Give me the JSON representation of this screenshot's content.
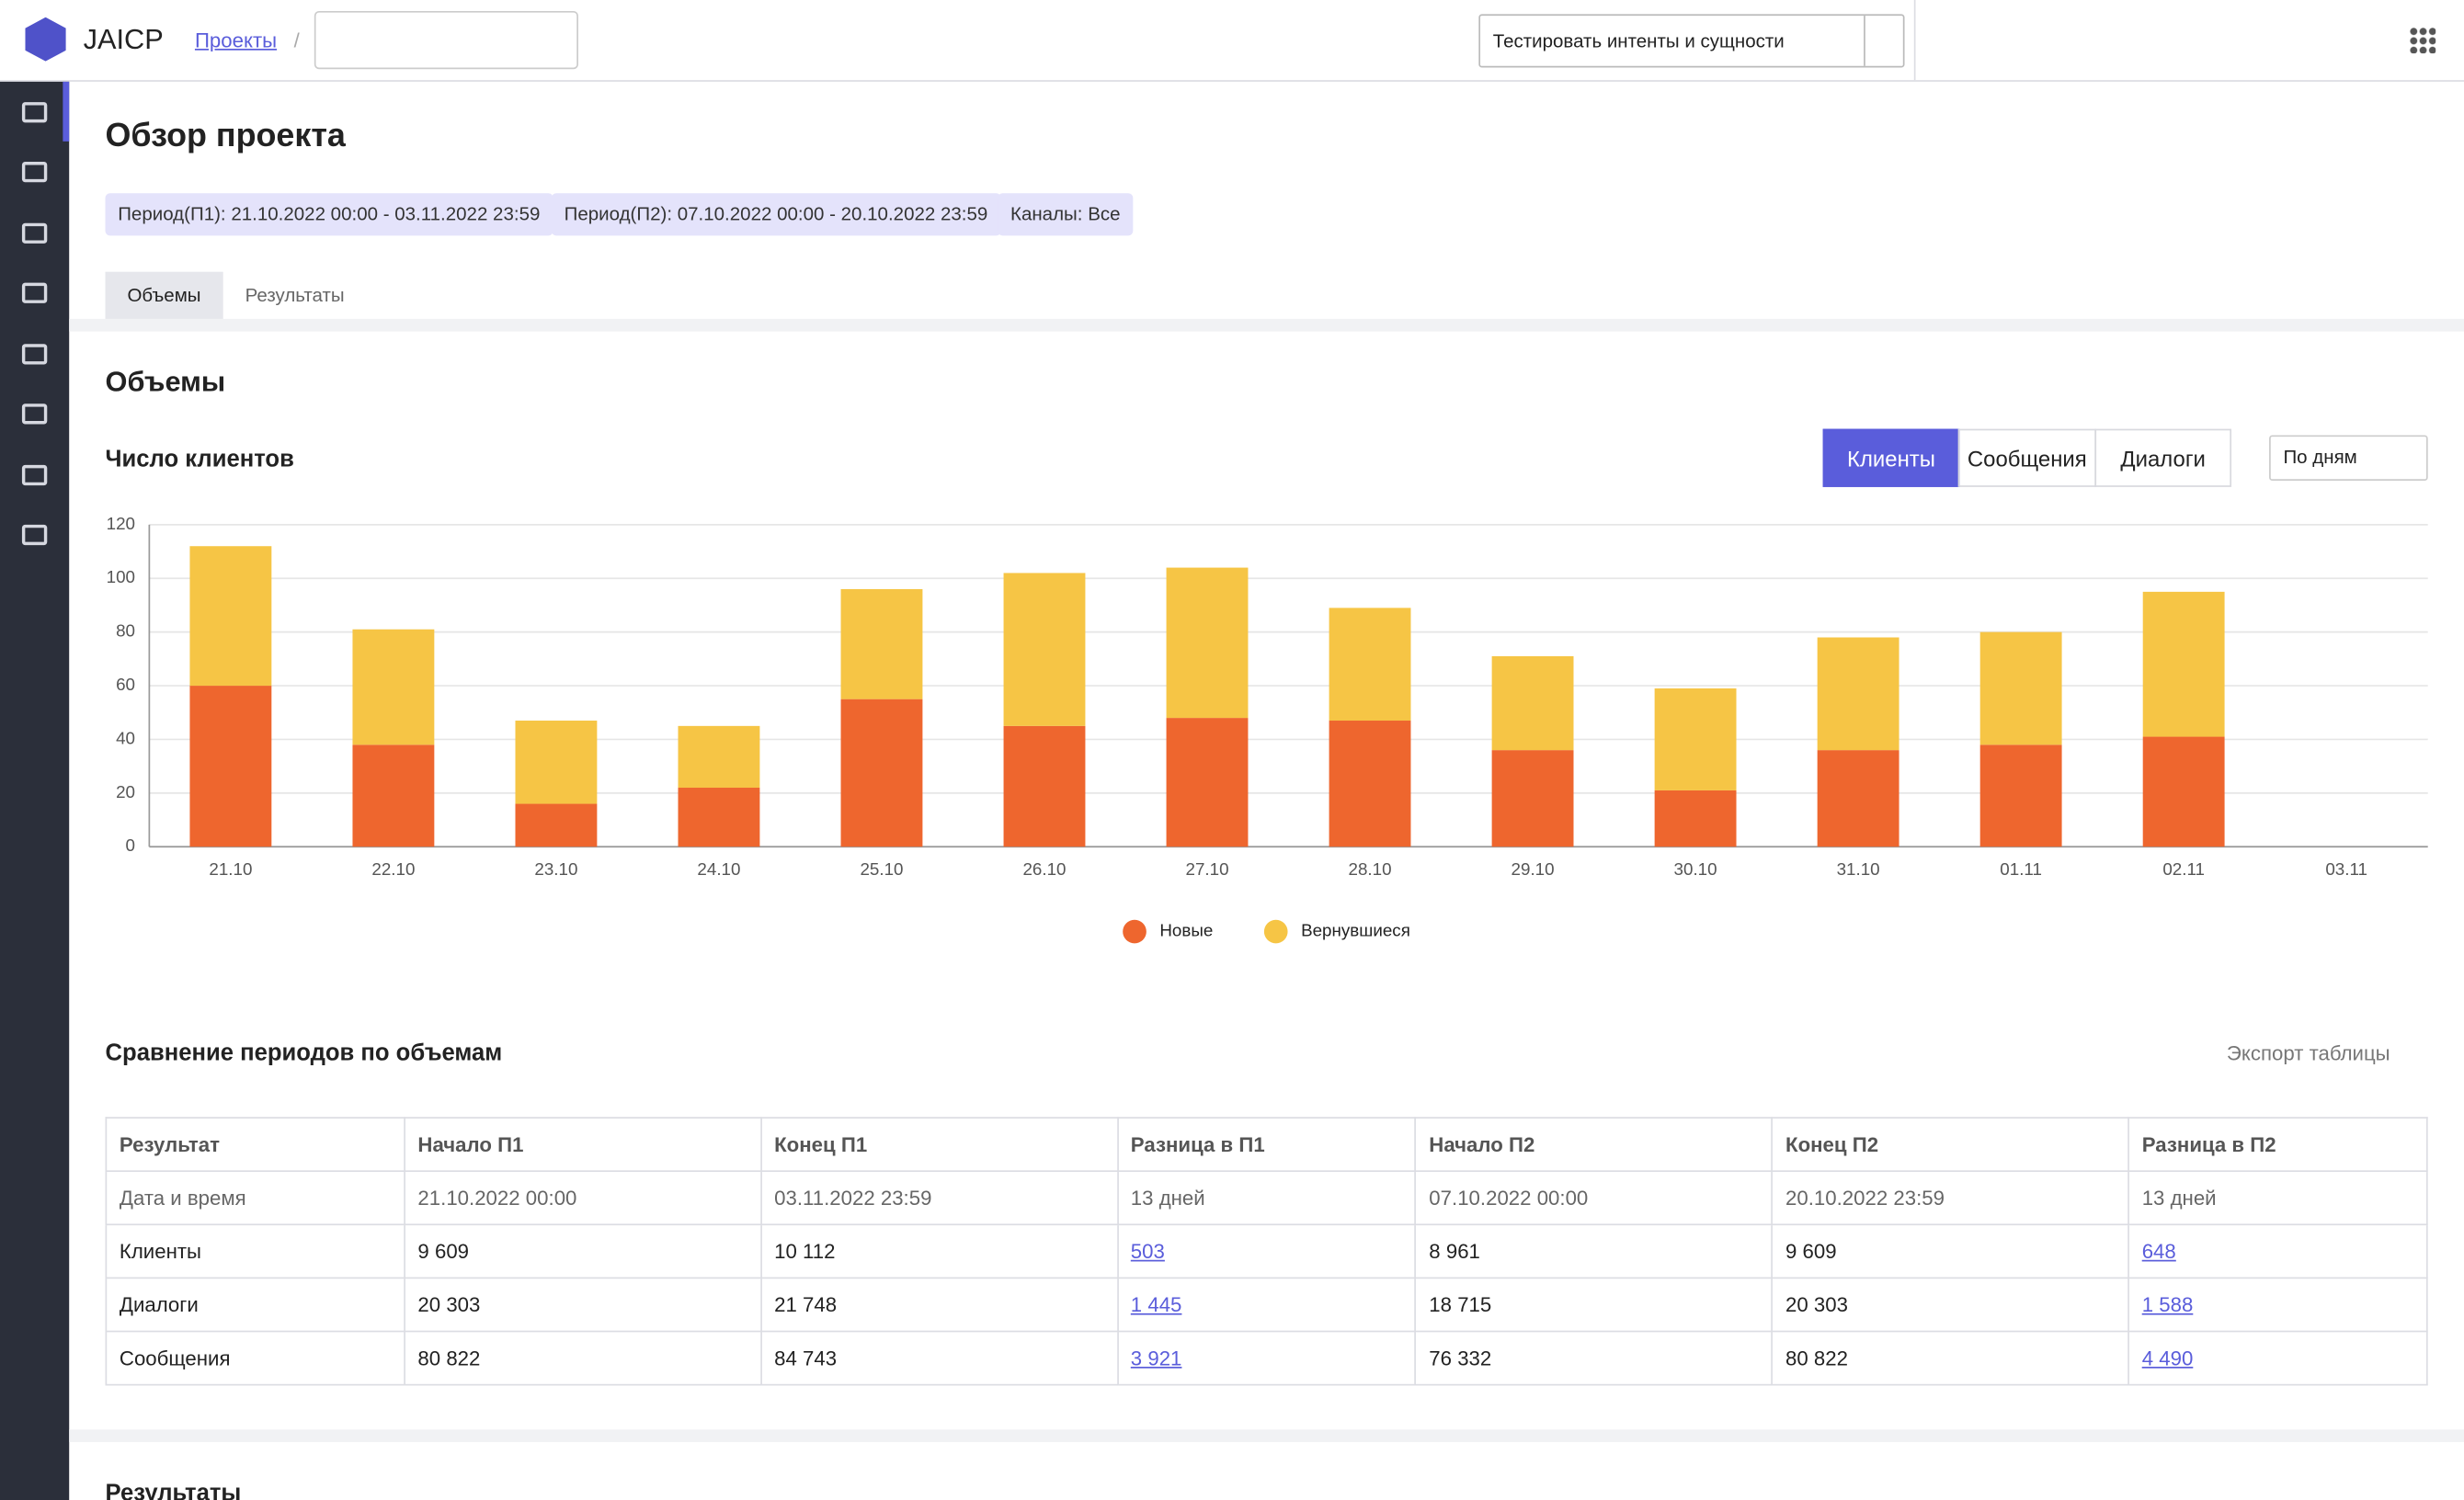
{
  "header": {
    "logo": "JAICP",
    "breadcrumb": "Проекты",
    "separator": "/",
    "test_button": "Тестировать интенты и сущности"
  },
  "page": {
    "title": "Обзор проекта",
    "filters": [
      "Период(П1): 21.10.2022 00:00 - 03.11.2022 23:59",
      "Период(П2): 07.10.2022 00:00 - 20.10.2022 23:59",
      "Каналы: Все"
    ],
    "tabs": [
      "Объемы",
      "Результаты"
    ],
    "section_title": "Объемы",
    "chart_title": "Число клиентов",
    "toggle": [
      "Клиенты",
      "Сообщения",
      "Диалоги"
    ],
    "period_select": "По дням",
    "next_section": "Результаты"
  },
  "chart_data": {
    "type": "stacked-bar",
    "categories": [
      "21.10",
      "22.10",
      "23.10",
      "24.10",
      "25.10",
      "26.10",
      "27.10",
      "28.10",
      "29.10",
      "30.10",
      "31.10",
      "01.11",
      "02.11",
      "03.11"
    ],
    "series": [
      {
        "name": "Новые",
        "color": "#ee662e",
        "values": [
          60,
          38,
          16,
          22,
          55,
          45,
          48,
          47,
          36,
          21,
          36,
          38,
          41,
          null
        ]
      },
      {
        "name": "Вернувшиеся",
        "color": "#f6c545",
        "values": [
          52,
          43,
          31,
          23,
          41,
          57,
          56,
          42,
          35,
          38,
          42,
          42,
          54,
          null
        ]
      }
    ],
    "ylim": [
      0,
      120
    ],
    "yticks": [
      0,
      20,
      40,
      60,
      80,
      100,
      120
    ],
    "grid": true,
    "legend": "bottom"
  },
  "table": {
    "title": "Сравнение периодов по объемам",
    "export": "Экспорт таблицы",
    "header": [
      "Результат",
      "Начало П1",
      "Конец П1",
      "Разница в П1",
      "Начало П2",
      "Конец П2",
      "Разница в П2"
    ],
    "rows": [
      [
        "Дата и время",
        "21.10.2022 00:00",
        "03.11.2022 23:59",
        "13 дней",
        "07.10.2022 00:00",
        "20.10.2022 23:59",
        "13 дней"
      ],
      [
        "Клиенты",
        "9 609",
        "10 112",
        "503",
        "8 961",
        "9 609",
        "648"
      ],
      [
        "Диалоги",
        "20 303",
        "21 748",
        "1 445",
        "18 715",
        "20 303",
        "1 588"
      ],
      [
        "Сообщения",
        "80 822",
        "84 743",
        "3 921",
        "76 332",
        "80 822",
        "4 490"
      ]
    ]
  }
}
